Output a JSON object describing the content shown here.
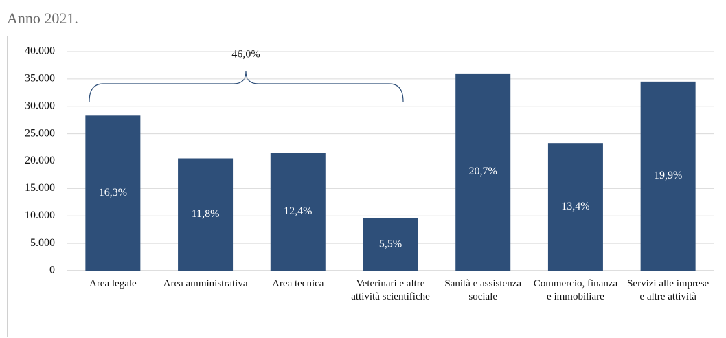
{
  "chart_data": {
    "type": "bar",
    "title": "Anno 2021.",
    "categories": [
      "Area legale",
      "Area amministrativa",
      "Area tecnica",
      "Veterinari e altre attività scientifiche",
      "Sanità e assistenza sociale",
      "Commercio, finanza e immobiliare",
      "Servizi alle imprese e altre attività"
    ],
    "values": [
      28300,
      20500,
      21500,
      9600,
      36000,
      23300,
      34500
    ],
    "share_labels": [
      "16,3%",
      "11,8%",
      "12,4%",
      "5,5%",
      "20,7%",
      "13,4%",
      "19,9%"
    ],
    "annotation": "46,0%",
    "color": "#2e4f79",
    "ylim": [
      0,
      40000
    ],
    "yticks": [
      0,
      {
        "value": 5000,
        "label": "5.000"
      },
      {
        "value": 10000,
        "label": "10.000"
      },
      {
        "value": 15000,
        "label": "15.000"
      },
      {
        "value": 20000,
        "label": "20.000"
      },
      {
        "value": 25000,
        "label": "25.000"
      },
      {
        "value": 30000,
        "label": "30.000"
      },
      {
        "value": 35000,
        "label": "35.000"
      },
      {
        "value": 40000,
        "label": "40.000"
      }
    ],
    "grid": true
  }
}
